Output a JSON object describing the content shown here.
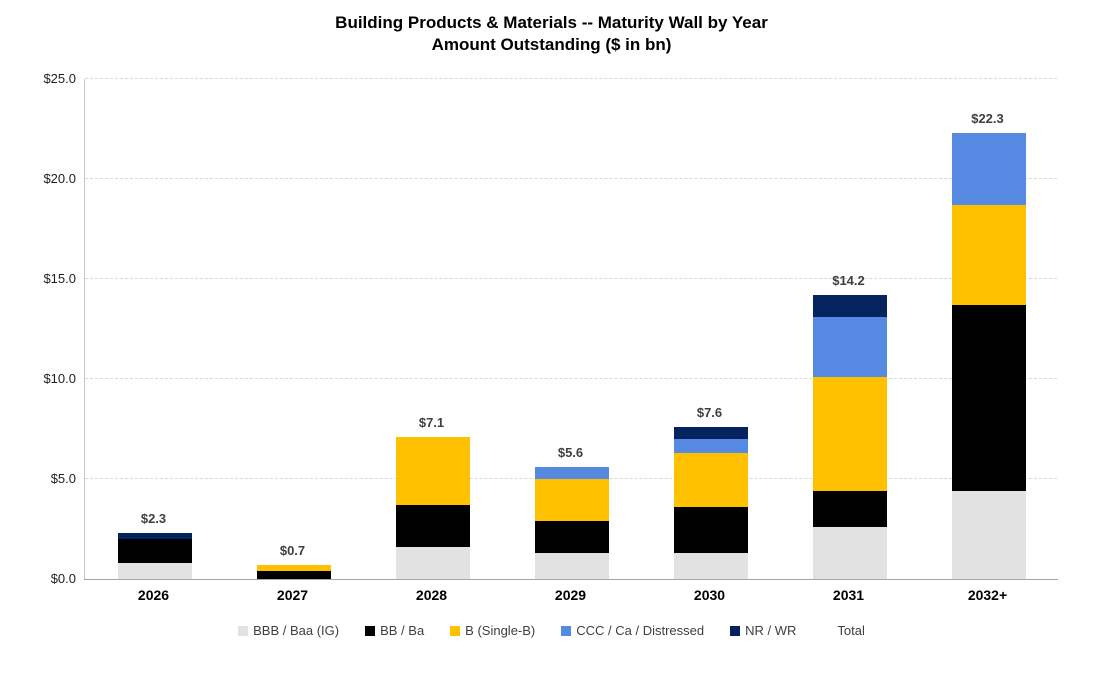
{
  "title": {
    "line1": "Building Products & Materials -- Maturity Wall by Year",
    "line2": "Amount Outstanding ($ in bn)"
  },
  "chart_data": {
    "type": "bar",
    "stacked": true,
    "title": "Building Products & Materials -- Maturity Wall by Year",
    "subtitle": "Amount Outstanding ($ in bn)",
    "categories": [
      "2026",
      "2027",
      "2028",
      "2029",
      "2030",
      "2031",
      "2032+"
    ],
    "series": [
      {
        "name": "BBB / Baa (IG)",
        "color": "#e2e2e2",
        "values": [
          0.8,
          0.0,
          1.6,
          1.3,
          1.3,
          2.6,
          4.4
        ]
      },
      {
        "name": "BB / Ba",
        "color": "#000000",
        "values": [
          1.2,
          0.4,
          2.1,
          1.6,
          2.3,
          1.8,
          9.3
        ]
      },
      {
        "name": "B (Single-B)",
        "color": "#ffc000",
        "values": [
          0.0,
          0.3,
          3.4,
          2.1,
          2.7,
          5.7,
          5.0
        ]
      },
      {
        "name": "CCC / Ca / Distressed",
        "color": "#5589e2",
        "values": [
          0.0,
          0.0,
          0.0,
          0.6,
          0.7,
          3.0,
          3.6
        ]
      },
      {
        "name": "NR / WR",
        "color": "#04235f",
        "values": [
          0.3,
          0.0,
          0.0,
          0.0,
          0.6,
          1.1,
          0.0
        ]
      }
    ],
    "totals": [
      2.3,
      0.7,
      7.1,
      5.6,
      7.6,
      14.2,
      22.3
    ],
    "total_labels": [
      "$2.3",
      "$0.7",
      "$7.1",
      "$5.6",
      "$7.6",
      "$14.2",
      "$22.3"
    ],
    "y_axis": {
      "min": 0,
      "max": 25,
      "ticks": [
        {
          "label": "$25.0",
          "value": 25
        },
        {
          "label": "$20.0",
          "value": 20
        },
        {
          "label": "$15.0",
          "value": 15
        },
        {
          "label": "$10.0",
          "value": 10
        },
        {
          "label": "$5.0",
          "value": 5
        },
        {
          "label": "$0.0",
          "value": 0
        }
      ]
    },
    "grid": {
      "style": "dashed",
      "color": "#d9d9d9",
      "orientation": "horizontal"
    },
    "legend": {
      "position": "bottom",
      "items": [
        {
          "label": "BBB / Baa (IG)",
          "color": "#e2e2e2"
        },
        {
          "label": "BB / Ba",
          "color": "#000000"
        },
        {
          "label": "B (Single-B)",
          "color": "#ffc000"
        },
        {
          "label": "CCC / Ca / Distressed",
          "color": "#5589e2"
        },
        {
          "label": "NR / WR",
          "color": "#04235f"
        },
        {
          "label": "Total",
          "color": "none"
        }
      ]
    }
  }
}
